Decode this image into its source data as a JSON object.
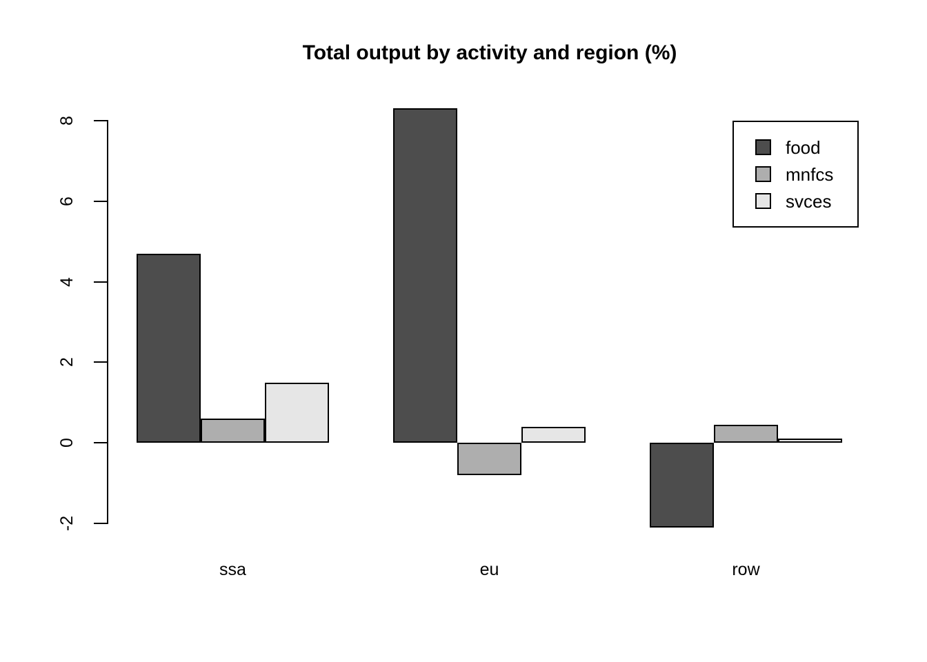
{
  "title": "Total output by activity and region (%)",
  "chart_data": {
    "type": "bar",
    "title": "Total output by activity and region (%)",
    "categories": [
      "ssa",
      "eu",
      "row"
    ],
    "series": [
      {
        "name": "food",
        "color": "#4D4D4D",
        "values": [
          4.7,
          8.3,
          -2.1
        ]
      },
      {
        "name": "mnfcs",
        "color": "#AEAEAE",
        "values": [
          0.6,
          -0.8,
          0.45
        ]
      },
      {
        "name": "svces",
        "color": "#E6E6E6",
        "values": [
          1.5,
          0.4,
          0.1
        ]
      }
    ],
    "xlabel": "",
    "ylabel": "",
    "ylim": [
      -2,
      8
    ],
    "yticks": [
      -2,
      0,
      2,
      4,
      6,
      8
    ],
    "grid": false,
    "bar_border_color": "#000000",
    "background_color": "#FFFFFF",
    "legend": {
      "position": "top-right",
      "entries": [
        "food",
        "mnfcs",
        "svces"
      ]
    }
  }
}
